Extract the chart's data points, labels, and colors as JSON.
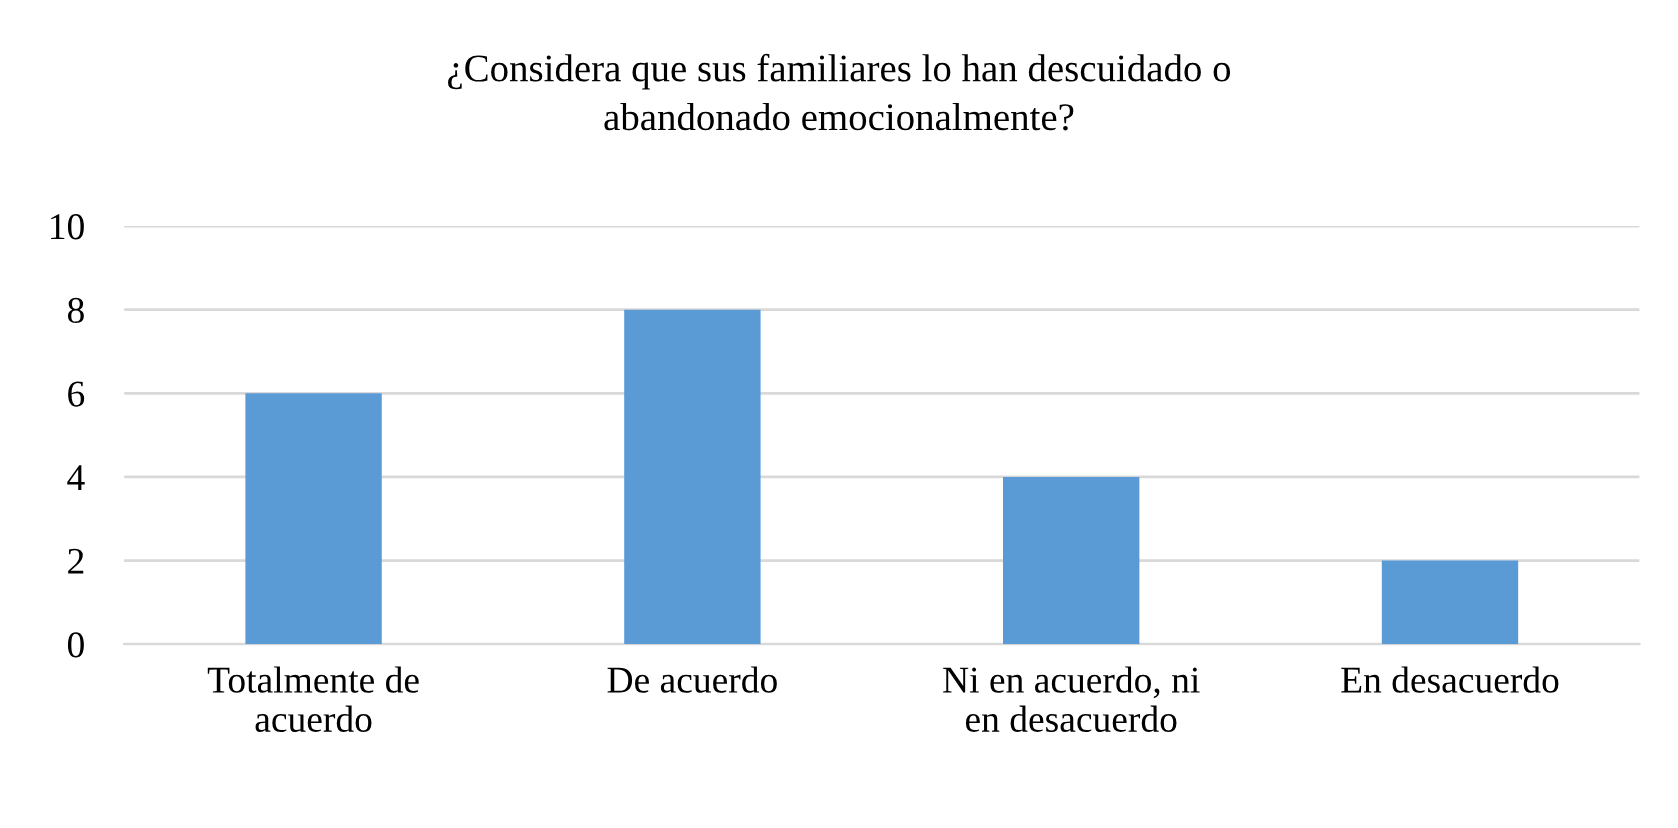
{
  "chart_data": {
    "type": "bar",
    "title": "¿Considera que sus familiares lo han descuidado o\nabandonado emocionalmente?",
    "categories": [
      "Totalmente de\nacuerdo",
      "De acuerdo",
      "Ni en acuerdo, ni\nen desacuerdo",
      "En desacuerdo"
    ],
    "values": [
      6,
      8,
      4,
      2
    ],
    "color": "#5b9bd5",
    "ylim": [
      0,
      10
    ],
    "yticks": [
      0,
      2,
      4,
      6,
      8,
      10
    ],
    "grid": "y",
    "legend": false
  }
}
